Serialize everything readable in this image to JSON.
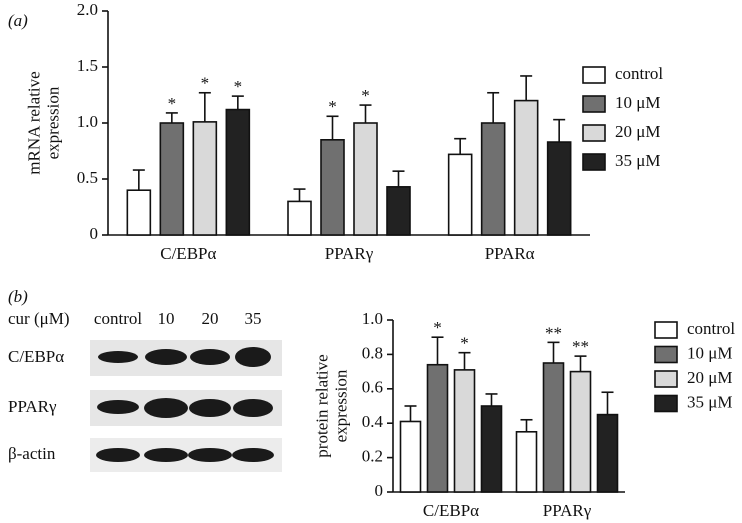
{
  "panels": [
    "(a)",
    "(b)"
  ],
  "blot": {
    "header": "cur (μM)",
    "lanes": [
      "control",
      "10",
      "20",
      "35"
    ],
    "rows": [
      "C/EBPα",
      "PPARγ",
      "β-actin"
    ]
  },
  "chart_data": [
    {
      "type": "bar",
      "ylabel": [
        "mRNA relative",
        "expression"
      ],
      "categories": [
        "C/EBPα",
        "PPARγ",
        "PPARα"
      ],
      "ylim": [
        0,
        2
      ],
      "yticks": [
        0,
        0.5,
        {
          "value": 1,
          "label": "1.0"
        },
        1.5,
        {
          "value": 2,
          "label": "2.0"
        }
      ],
      "series": [
        {
          "name": "control",
          "color": "#ffffff",
          "values": [
            0.4,
            0.3,
            0.72
          ],
          "errors": [
            0.18,
            0.11,
            0.14
          ],
          "annotations": [
            null,
            null,
            null
          ]
        },
        {
          "name": "10 μM",
          "color": "#707070",
          "values": [
            1.0,
            0.85,
            1.0
          ],
          "errors": [
            0.09,
            0.21,
            0.27
          ],
          "annotations": [
            "*",
            "*",
            null
          ]
        },
        {
          "name": "20 μM",
          "color": "#d9d9d9",
          "values": [
            1.01,
            1.0,
            1.2
          ],
          "errors": [
            0.26,
            0.16,
            0.22
          ],
          "annotations": [
            "*",
            "*",
            null
          ]
        },
        {
          "name": "35 μM",
          "color": "#222222",
          "values": [
            1.12,
            0.43,
            0.83
          ],
          "errors": [
            0.12,
            0.14,
            0.2
          ],
          "annotations": [
            "*",
            null,
            null
          ]
        }
      ]
    },
    {
      "type": "bar",
      "ylabel": [
        "protein relative",
        "expression"
      ],
      "categories": [
        "C/EBPα",
        "PPARγ"
      ],
      "ylim": [
        0,
        1
      ],
      "yticks": [
        0,
        0.2,
        0.4,
        0.6,
        0.8,
        {
          "value": 1,
          "label": "1.0"
        }
      ],
      "series": [
        {
          "name": "control",
          "color": "#ffffff",
          "values": [
            0.41,
            0.35
          ],
          "errors": [
            0.09,
            0.07
          ],
          "annotations": [
            null,
            null
          ]
        },
        {
          "name": "10 μM",
          "color": "#707070",
          "values": [
            0.74,
            0.75
          ],
          "errors": [
            0.16,
            0.12
          ],
          "annotations": [
            "*",
            "**"
          ]
        },
        {
          "name": "20 μM",
          "color": "#d9d9d9",
          "values": [
            0.71,
            0.7
          ],
          "errors": [
            0.1,
            0.09
          ],
          "annotations": [
            "*",
            "**"
          ]
        },
        {
          "name": "35 μM",
          "color": "#222222",
          "values": [
            0.5,
            0.45
          ],
          "errors": [
            0.07,
            0.13
          ],
          "annotations": [
            null,
            null
          ]
        }
      ]
    }
  ]
}
